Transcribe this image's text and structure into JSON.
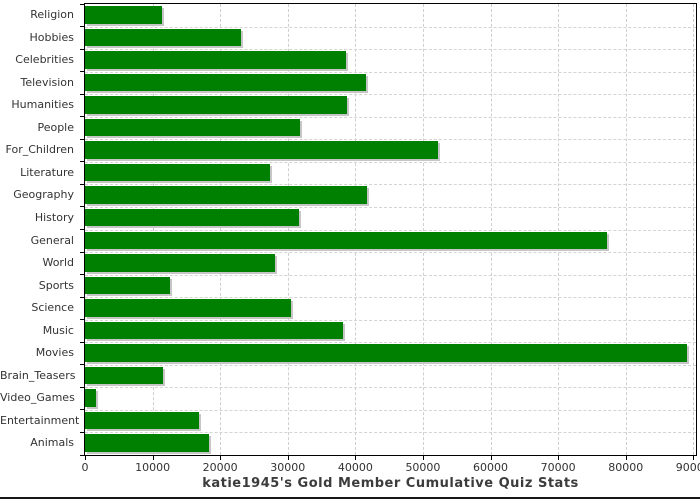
{
  "chart_data": {
    "type": "bar",
    "orientation": "horizontal",
    "title": "katie1945's Gold Member Cumulative Quiz Stats",
    "categories": [
      "Religion",
      "Hobbies",
      "Celebrities",
      "Television",
      "Humanities",
      "People",
      "For_Children",
      "Literature",
      "Geography",
      "History",
      "General",
      "World",
      "Sports",
      "Science",
      "Music",
      "Movies",
      "Brain_Teasers",
      "Video_Games",
      "Entertainment",
      "Animals"
    ],
    "values": [
      11400,
      23100,
      38600,
      41600,
      38800,
      31800,
      52300,
      27400,
      41700,
      31600,
      77300,
      28100,
      12600,
      30500,
      38200,
      89100,
      11500,
      1700,
      16800,
      18300
    ],
    "xlabel": "",
    "ylabel": "",
    "xlim": [
      0,
      90400
    ],
    "x_ticks": [
      0,
      10000,
      20000,
      30000,
      40000,
      50000,
      60000,
      70000,
      80000,
      90000
    ],
    "x_tick_labels": [
      "0",
      "10000",
      "20000",
      "30000",
      "40000",
      "50000",
      "60000",
      "70000",
      "80000",
      "90000"
    ],
    "grid": "dashed, light gray, vertical at value ticks and horizontal at category boundaries",
    "legend": "none",
    "bar_color": "#008000",
    "bar_shadow_color": "#c6c6c6",
    "gridline_color": "#cfcfcf",
    "axis_color": "#000000",
    "label_color": "#333333",
    "title_color": "#3c3c3c"
  }
}
